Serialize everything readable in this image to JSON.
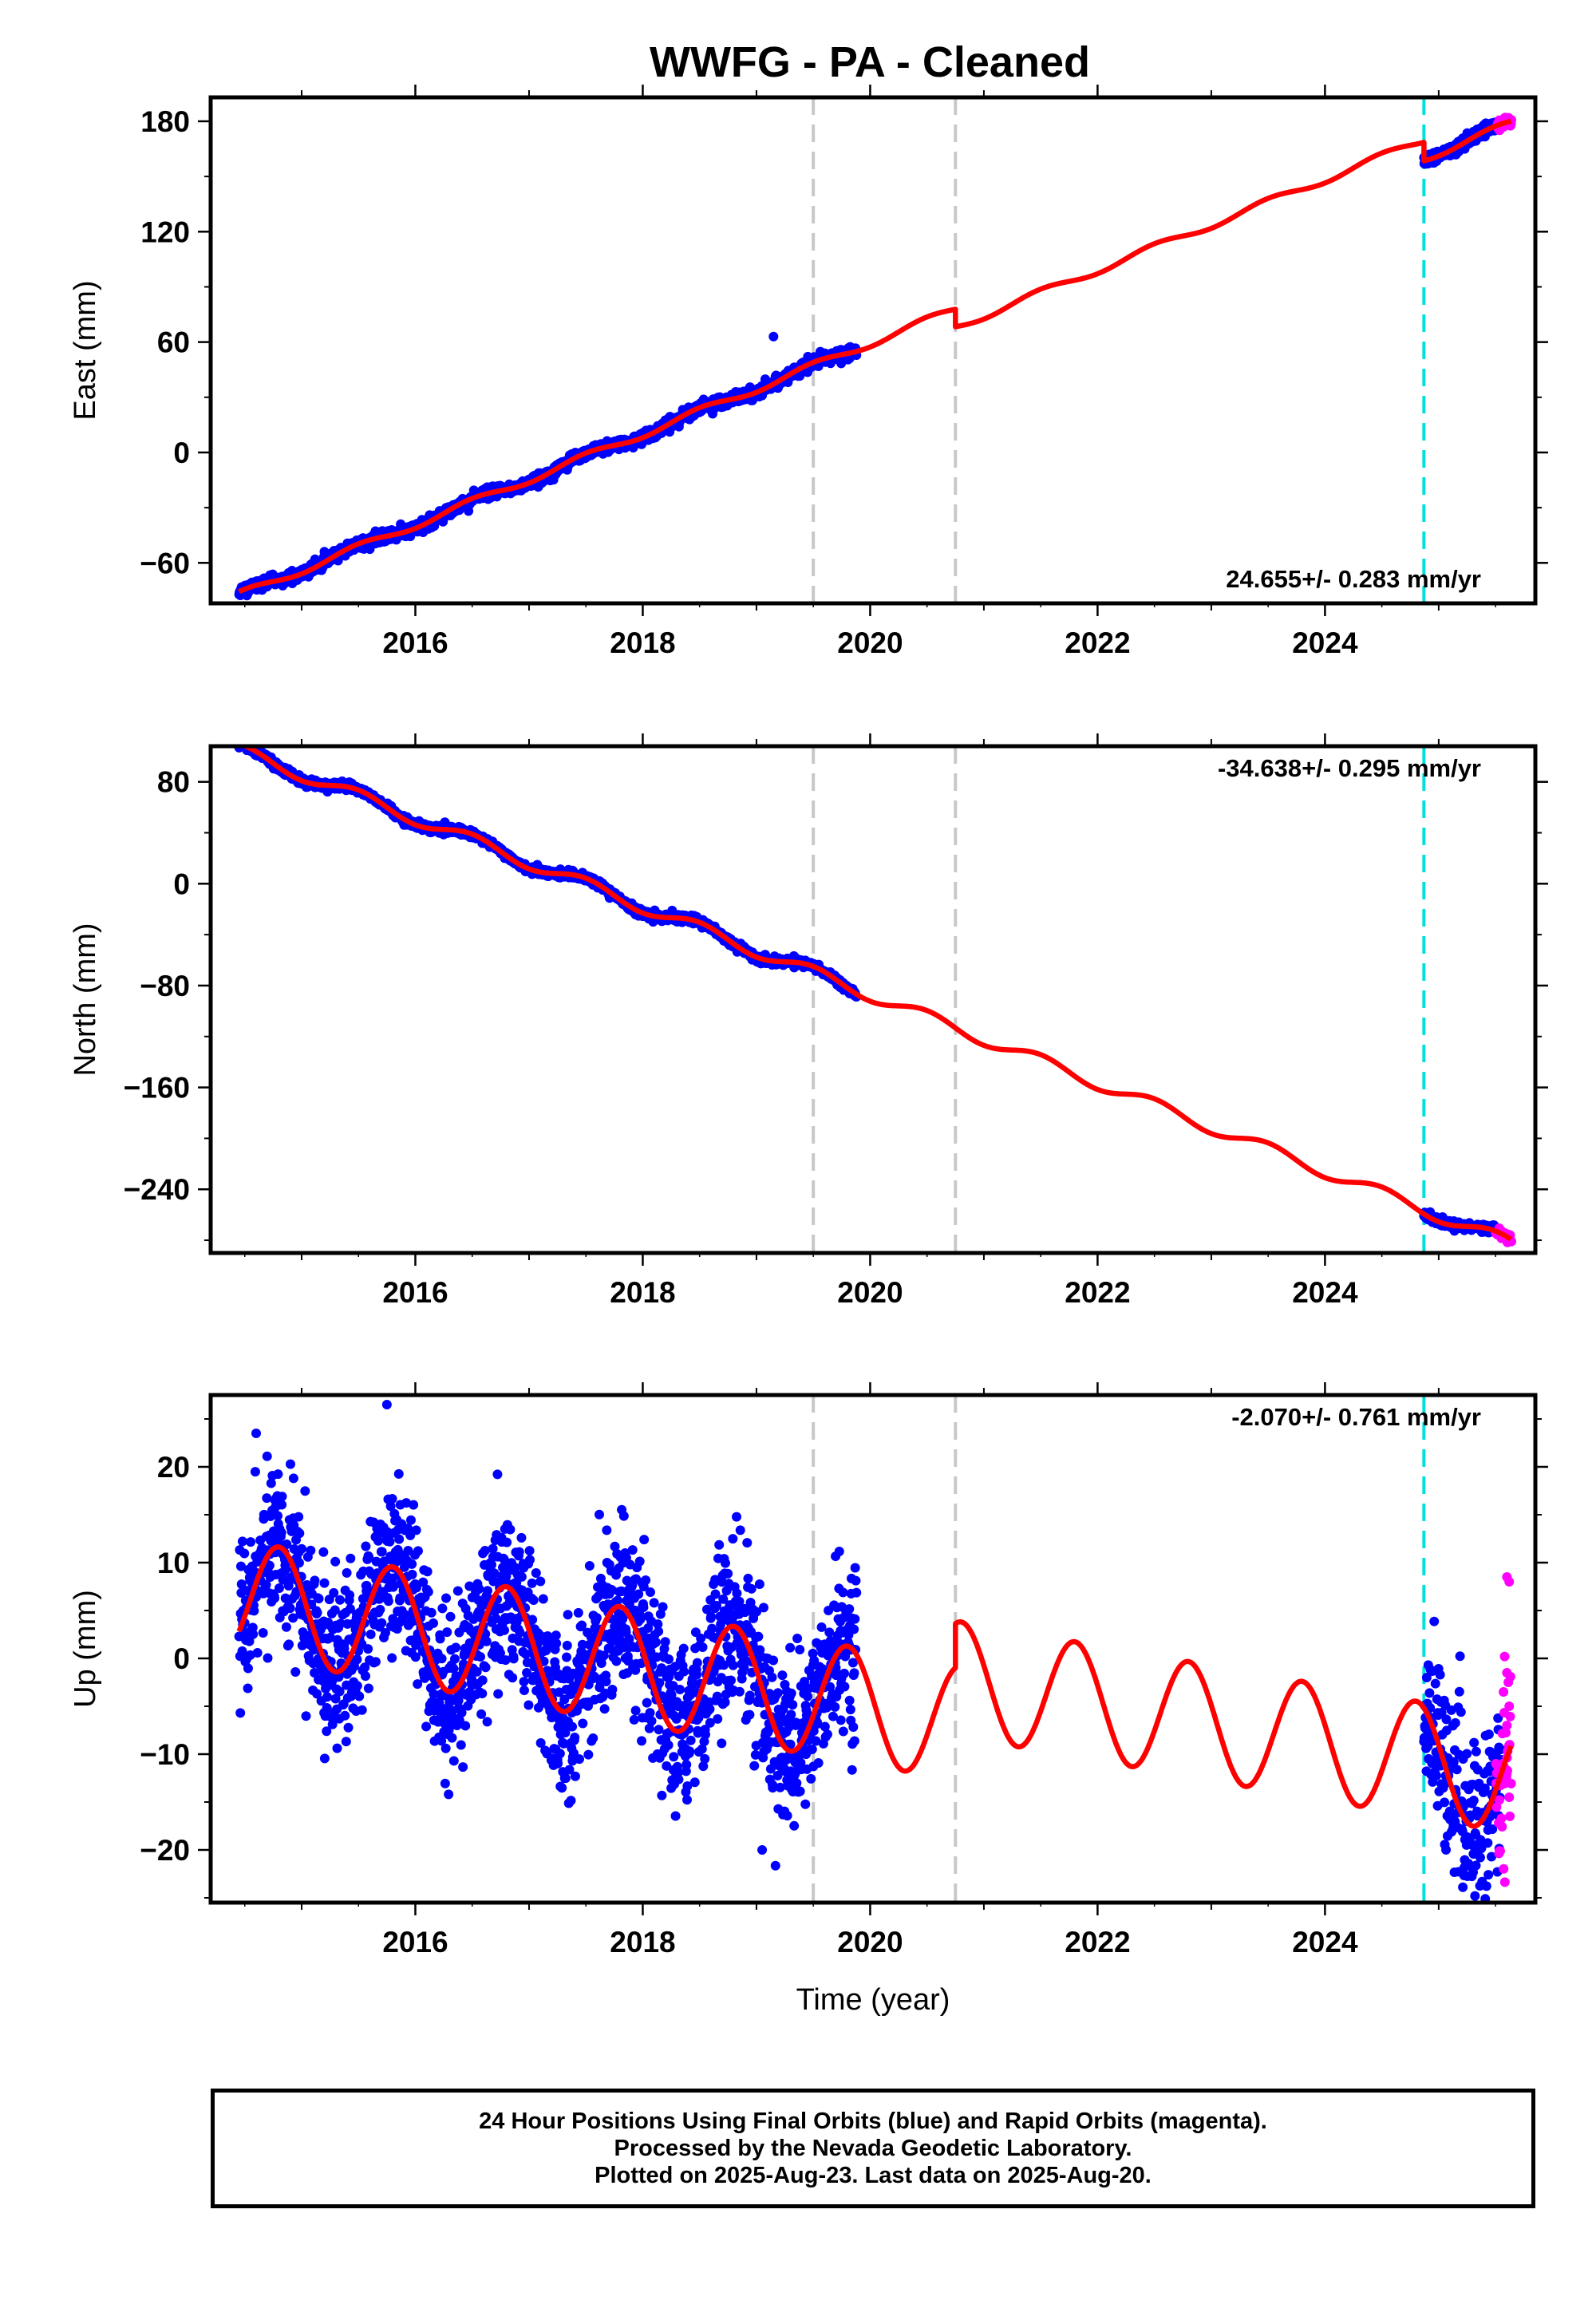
{
  "title": "WWFG  - PA - Cleaned",
  "xlabel": "Time (year)",
  "footer": {
    "line1": "24 Hour Positions Using Final Orbits (blue) and Rapid Orbits (magenta).",
    "line2": "Processed by the Nevada Geodetic Laboratory.",
    "line3": "Plotted on 2025-Aug-23. Last data on 2025-Aug-20."
  },
  "colors": {
    "final_orbits": "#0000ff",
    "rapid_orbits": "#ff00ff",
    "model_fit": "#ff0000",
    "equipment_change": "#c8c8c8",
    "earthquake_or_offset": "#00e0e0"
  },
  "chart_data": [
    {
      "type": "scatter",
      "component": "East",
      "ylabel": "East (mm)",
      "velocity_label": "24.655+/- 0.283 mm/yr",
      "xlim": [
        2014.2,
        2025.85
      ],
      "ylim": [
        -82,
        193
      ],
      "yticks": [
        -60,
        0,
        60,
        120,
        180
      ],
      "xticks": [
        2016,
        2018,
        2020,
        2022,
        2024
      ],
      "gray_dashed_lines": [
        2019.5,
        2020.75
      ],
      "cyan_dashed_lines": [
        2024.87
      ],
      "model": {
        "ref_year": 2019.5,
        "ref_value": 47.0,
        "rate": 24.655,
        "annual_amplitude": 2.0,
        "steps": [
          {
            "year": 2020.75,
            "offset": -9.5
          },
          {
            "year": 2024.87,
            "offset": -10.0
          }
        ]
      },
      "final_span": [
        [
          2014.45,
          2019.88
        ],
        [
          2024.87,
          2025.5
        ]
      ],
      "rapid_span": [
        2025.5,
        2025.64
      ],
      "scatter_sd": 1.5,
      "outliers": [
        {
          "x": 2019.15,
          "y": 63
        }
      ]
    },
    {
      "type": "scatter",
      "component": "North",
      "ylabel": "North (mm)",
      "velocity_label": "-34.638+/- 0.295 mm/yr",
      "xlim": [
        2014.2,
        2025.85
      ],
      "ylim": [
        -290,
        108
      ],
      "yticks": [
        -240,
        -160,
        -80,
        0,
        80
      ],
      "xticks": [
        2016,
        2018,
        2020,
        2022,
        2024
      ],
      "gray_dashed_lines": [
        2019.5,
        2020.75
      ],
      "cyan_dashed_lines": [
        2024.87
      ],
      "model": {
        "ref_year": 2019.5,
        "ref_value": -70.0,
        "rate": -34.638,
        "annual_amplitude": 5.0,
        "steps": [
          {
            "year": 2020.75,
            "offset": 0
          },
          {
            "year": 2024.87,
            "offset": 0
          }
        ]
      },
      "final_span": [
        [
          2014.45,
          2019.88
        ],
        [
          2024.87,
          2025.5
        ]
      ],
      "rapid_span": [
        2025.5,
        2025.64
      ],
      "scatter_sd": 1.5,
      "outliers": [
        {
          "x": 2016.3,
          "y": 45
        }
      ]
    },
    {
      "type": "scatter",
      "component": "Up",
      "ylabel": "Up (mm)",
      "velocity_label": "-2.070+/- 0.761 mm/yr",
      "xlim": [
        2014.2,
        2025.85
      ],
      "ylim": [
        -25.5,
        27.5
      ],
      "yticks": [
        -20,
        -10,
        0,
        10,
        20
      ],
      "xticks": [
        2016,
        2018,
        2020,
        2022,
        2024
      ],
      "gray_dashed_lines": [
        2019.5,
        2020.75
      ],
      "cyan_dashed_lines": [
        2024.87
      ],
      "model": {
        "ref_year": 2019.5,
        "ref_value": -4.1,
        "rate": -2.07,
        "annual_amplitude": 6.0,
        "annual_phase_year": 2014.8,
        "steps": [
          {
            "year": 2020.75,
            "offset": 4.6
          },
          {
            "year": 2024.87,
            "offset": 0
          }
        ]
      },
      "final_span": [
        [
          2014.45,
          2019.88
        ],
        [
          2024.87,
          2025.55
        ]
      ],
      "rapid_span": [
        2025.5,
        2025.64
      ],
      "scatter_sd": 4.2,
      "outliers": [
        {
          "x": 2015.75,
          "y": 26.5
        },
        {
          "x": 2014.6,
          "y": 23.5
        },
        {
          "x": 2019.05,
          "y": -20
        },
        {
          "x": 2025.6,
          "y": 8.5
        },
        {
          "x": 2025.62,
          "y": 8.0
        },
        {
          "x": 2025.58,
          "y": 0.2
        },
        {
          "x": 2025.6,
          "y": -1.5
        },
        {
          "x": 2025.57,
          "y": -3.5
        },
        {
          "x": 2025.62,
          "y": -5.0
        },
        {
          "x": 2025.6,
          "y": -7.0
        },
        {
          "x": 2025.62,
          "y": -14.5
        }
      ]
    }
  ]
}
